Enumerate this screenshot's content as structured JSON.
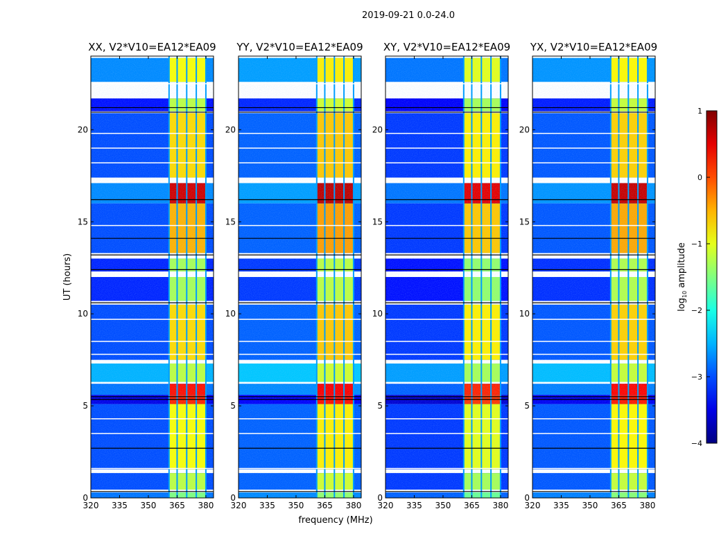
{
  "chart_data": {
    "type": "heatmap",
    "suptitle": "2019-09-21 0.0-24.0",
    "xlabel": "frequency (MHz)",
    "ylabel": "UT (hours)",
    "xlim": [
      320,
      384
    ],
    "ylim": [
      0,
      24
    ],
    "xticks": [
      "320",
      "335",
      "350",
      "365",
      "380"
    ],
    "xtick_values": [
      320,
      335,
      350,
      365,
      380
    ],
    "yticks": [
      "0",
      "5",
      "10",
      "15",
      "20"
    ],
    "ytick_values": [
      0,
      5,
      10,
      15,
      20
    ],
    "colorbar": {
      "label_main": "log",
      "label_sub": "10",
      "label_rest": " amplitude",
      "range": [
        -4,
        1
      ],
      "ticks": [
        "1",
        "0",
        "−1",
        "−2",
        "−3",
        "−4"
      ],
      "tick_values": [
        1,
        0,
        -1,
        -2,
        -3,
        -4
      ]
    },
    "band": {
      "start_mhz": 360.5,
      "end_mhz": 380,
      "dividers_mhz": [
        365,
        370,
        375
      ]
    },
    "panels": [
      {
        "title": "XX, V2*V10=EA12*EA09",
        "offset": 0
      },
      {
        "title": "YY, V2*V10=EA12*EA09",
        "offset": 0.1
      },
      {
        "title": "XY, V2*V10=EA12*EA09",
        "offset": -0.1
      },
      {
        "title": "YX, V2*V10=EA12*EA09",
        "offset": 0.05
      }
    ],
    "segments": [
      {
        "t0": 0.0,
        "t1": 0.3,
        "bg": -2.8,
        "band": -1.5
      },
      {
        "t0": 0.45,
        "t1": 1.35,
        "bg": -3.0,
        "band": -1.2
      },
      {
        "t0": 1.55,
        "t1": 5.1,
        "bg": -3.0,
        "band": -0.9
      },
      {
        "t0": 5.1,
        "t1": 5.6,
        "bg": -3.5,
        "band": 0.2
      },
      {
        "t0": 5.6,
        "t1": 6.2,
        "bg": -2.8,
        "band": 0.3
      },
      {
        "t0": 6.3,
        "t1": 7.3,
        "bg": -2.5,
        "band": -1.2
      },
      {
        "t0": 7.5,
        "t1": 10.5,
        "bg": -3.0,
        "band": -0.7
      },
      {
        "t0": 10.7,
        "t1": 12.0,
        "bg": -3.2,
        "band": -1.3
      },
      {
        "t0": 12.3,
        "t1": 13.0,
        "bg": -3.2,
        "band": -1.3
      },
      {
        "t0": 13.3,
        "t1": 16.0,
        "bg": -3.0,
        "band": -0.5
      },
      {
        "t0": 16.0,
        "t1": 17.1,
        "bg": -2.7,
        "band": 0.6
      },
      {
        "t0": 17.4,
        "t1": 20.9,
        "bg": -3.0,
        "band": -0.7
      },
      {
        "t0": 21.0,
        "t1": 21.7,
        "bg": -3.3,
        "band": -1.2
      },
      {
        "t0": 22.6,
        "t1": 23.9,
        "bg": -2.7,
        "band": -0.9
      }
    ],
    "black_lines_hours": [
      0.35,
      2.7,
      5.5,
      5.35,
      10.6,
      12.4,
      13.2,
      14.1,
      16.2,
      20.95,
      21.2
    ],
    "white_lines_hours": [
      1.6,
      3.5,
      4.3,
      7.8,
      8.5,
      9.7,
      14.8,
      18.2,
      19.0,
      19.8,
      22.5
    ]
  }
}
